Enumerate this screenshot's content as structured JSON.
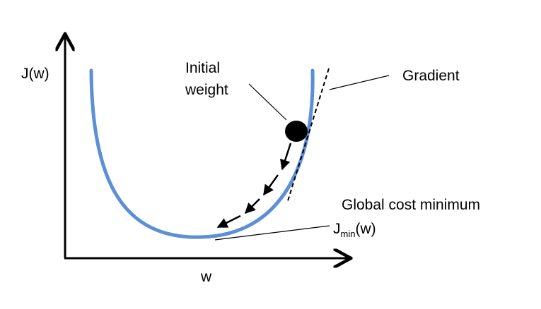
{
  "labels": {
    "y_axis": "J(w)",
    "x_axis": "w",
    "initial_weight_line1": "Initial",
    "initial_weight_line2": "weight",
    "gradient": "Gradient",
    "global_min": "Global cost minimum",
    "jmin_prefix": "J",
    "jmin_sub": "min",
    "jmin_suffix": "(w)"
  },
  "colors": {
    "curve": "#5b8fd6",
    "ink": "#000000",
    "background": "#ffffff"
  }
}
